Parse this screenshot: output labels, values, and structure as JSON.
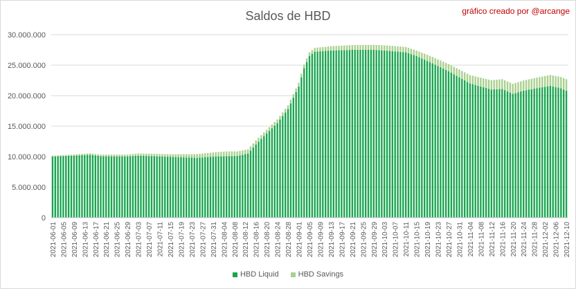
{
  "chart_data": {
    "type": "bar",
    "stacked": true,
    "title": "Saldos de HBD",
    "credit": "gráfico creado por @arcange",
    "xlabel": "",
    "ylabel": "",
    "ylim": [
      0,
      30000000
    ],
    "yticks": [
      "0",
      "5.000.000",
      "10.000.000",
      "15.000.000",
      "20.000.000",
      "25.000.000",
      "30.000.000"
    ],
    "grid": true,
    "legend_position": "bottom",
    "x_start": "2021-06-01",
    "x_end": "2021-12-10",
    "x_tick_step_days": 4,
    "series": [
      {
        "name": "HBD Liquid",
        "color": "#1aa550",
        "keyframes": [
          [
            "2021-06-01",
            10000000
          ],
          [
            "2021-06-09",
            10150000
          ],
          [
            "2021-06-15",
            10300000
          ],
          [
            "2021-06-19",
            10050000
          ],
          [
            "2021-06-29",
            10000000
          ],
          [
            "2021-07-03",
            10150000
          ],
          [
            "2021-07-15",
            9950000
          ],
          [
            "2021-07-25",
            9800000
          ],
          [
            "2021-08-01",
            10000000
          ],
          [
            "2021-08-09",
            10100000
          ],
          [
            "2021-08-13",
            10500000
          ],
          [
            "2021-08-16",
            12000000
          ],
          [
            "2021-08-20",
            13800000
          ],
          [
            "2021-08-24",
            15500000
          ],
          [
            "2021-08-28",
            17800000
          ],
          [
            "2021-09-01",
            21500000
          ],
          [
            "2021-09-03",
            24500000
          ],
          [
            "2021-09-05",
            26500000
          ],
          [
            "2021-09-07",
            27200000
          ],
          [
            "2021-09-13",
            27400000
          ],
          [
            "2021-09-21",
            27500000
          ],
          [
            "2021-09-29",
            27500000
          ],
          [
            "2021-10-03",
            27400000
          ],
          [
            "2021-10-11",
            27100000
          ],
          [
            "2021-10-15",
            26500000
          ],
          [
            "2021-10-21",
            25300000
          ],
          [
            "2021-10-27",
            24000000
          ],
          [
            "2021-10-31",
            23000000
          ],
          [
            "2021-11-04",
            22000000
          ],
          [
            "2021-11-12",
            21000000
          ],
          [
            "2021-11-16",
            21100000
          ],
          [
            "2021-11-20",
            20300000
          ],
          [
            "2021-11-24",
            20800000
          ],
          [
            "2021-11-30",
            21300000
          ],
          [
            "2021-12-04",
            21600000
          ],
          [
            "2021-12-08",
            21200000
          ],
          [
            "2021-12-10",
            20800000
          ]
        ]
      },
      {
        "name": "HBD Savings",
        "color": "#a9d08e",
        "keyframes": [
          [
            "2021-06-01",
            150000
          ],
          [
            "2021-07-15",
            450000
          ],
          [
            "2021-08-05",
            800000
          ],
          [
            "2021-08-20",
            600000
          ],
          [
            "2021-09-05",
            600000
          ],
          [
            "2021-09-21",
            800000
          ],
          [
            "2021-10-15",
            900000
          ],
          [
            "2021-11-01",
            1300000
          ],
          [
            "2021-11-16",
            1600000
          ],
          [
            "2021-12-05",
            1800000
          ],
          [
            "2021-12-10",
            1900000
          ]
        ]
      }
    ]
  }
}
